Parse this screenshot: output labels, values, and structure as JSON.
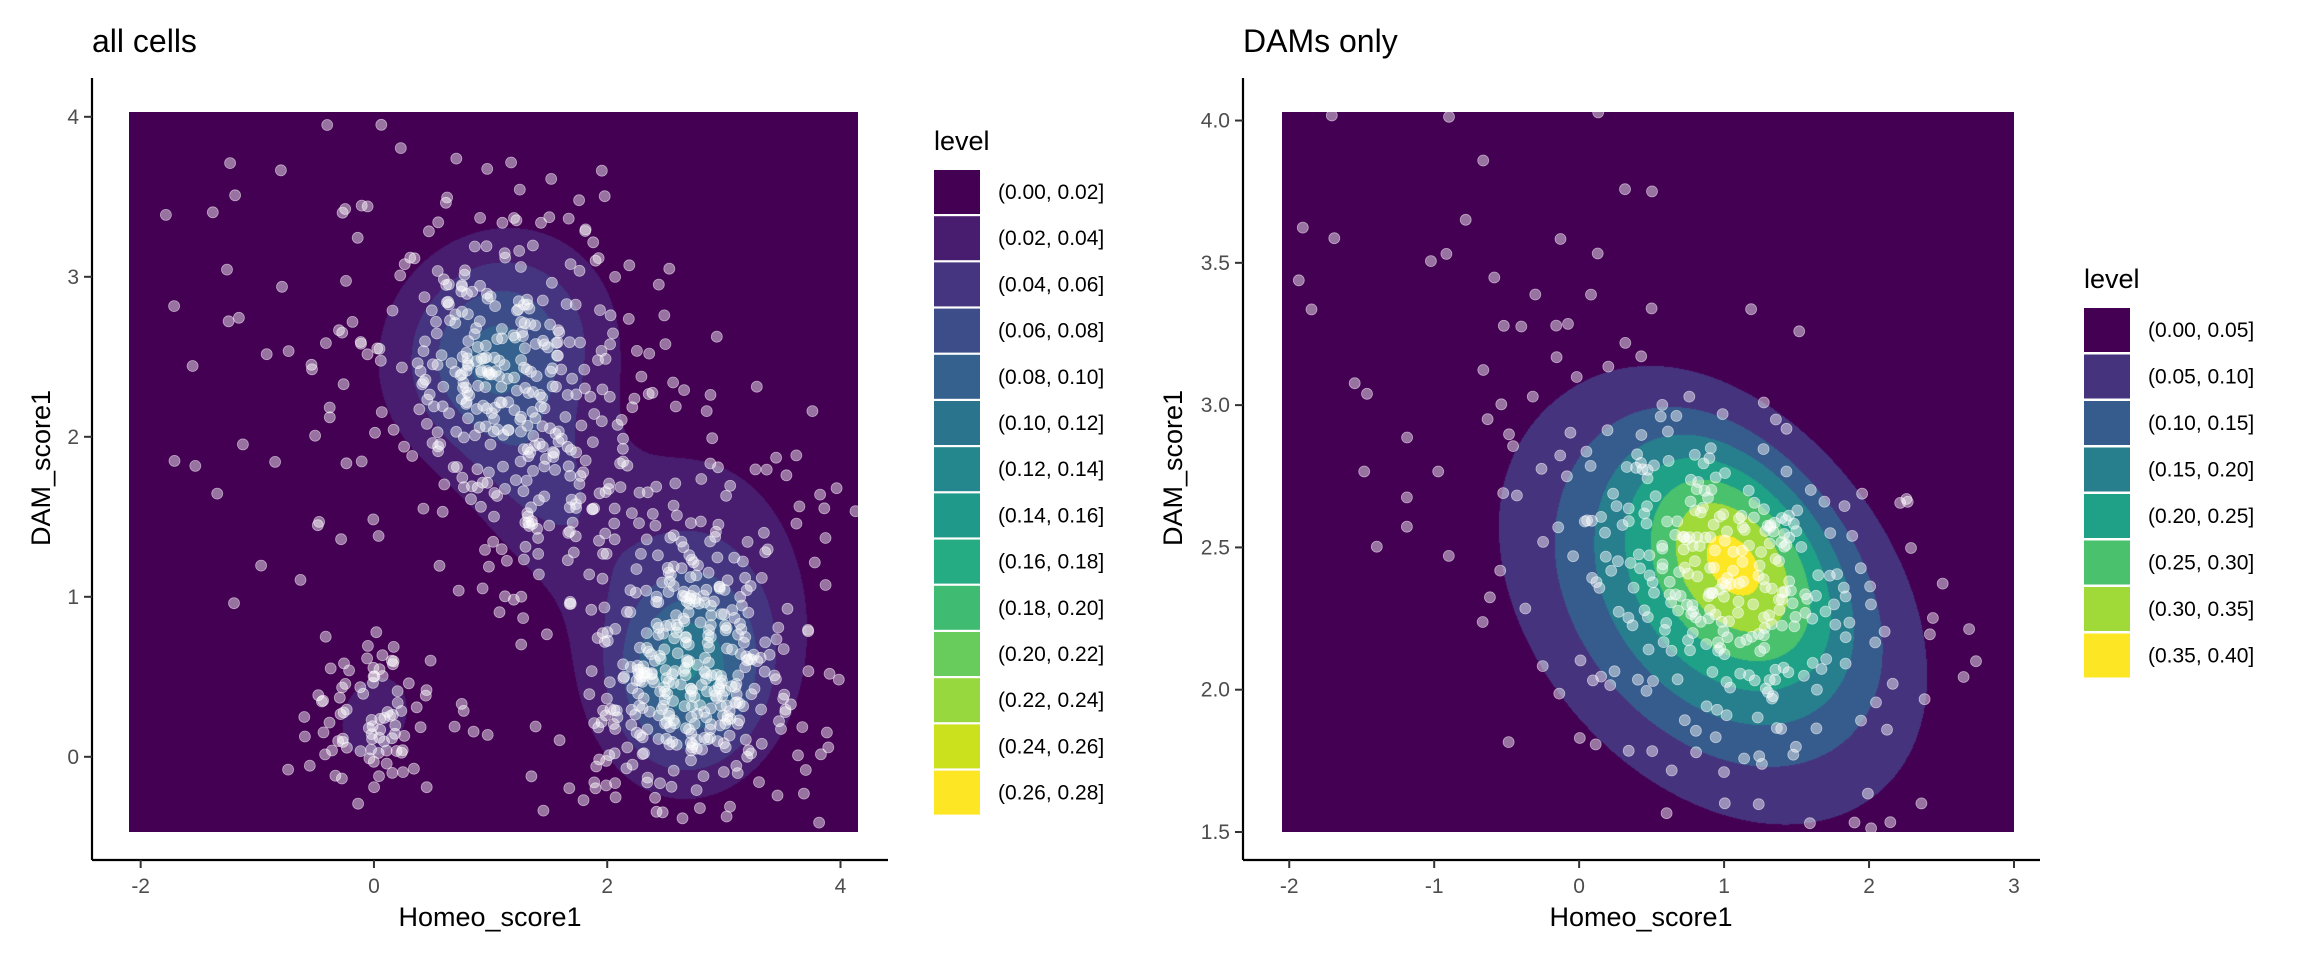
{
  "chart_data": [
    {
      "type": "density_contour",
      "title": "all cells",
      "xlabel": "Homeo_score1",
      "ylabel": "DAM_score1",
      "xlim": [
        -2.1,
        4.15
      ],
      "ylim": [
        -0.47,
        4.03
      ],
      "x_ticks": [
        -2,
        0,
        2,
        4
      ],
      "y_ticks": [
        0,
        1,
        2,
        3,
        4
      ],
      "legend_title": "level",
      "legend_position": "right",
      "legend": [
        {
          "label": "(0.00, 0.02]",
          "color": "#440154"
        },
        {
          "label": "(0.02, 0.04]",
          "color": "#481C6E"
        },
        {
          "label": "(0.04, 0.06]",
          "color": "#453581"
        },
        {
          "label": "(0.06, 0.08]",
          "color": "#3D4D8A"
        },
        {
          "label": "(0.08, 0.10]",
          "color": "#34618D"
        },
        {
          "label": "(0.10, 0.12]",
          "color": "#2B748E"
        },
        {
          "label": "(0.12, 0.14]",
          "color": "#24878E"
        },
        {
          "label": "(0.14, 0.16]",
          "color": "#1F998A"
        },
        {
          "label": "(0.16, 0.18]",
          "color": "#25AC82"
        },
        {
          "label": "(0.18, 0.20]",
          "color": "#40BC72"
        },
        {
          "label": "(0.20, 0.22]",
          "color": "#67CC5C"
        },
        {
          "label": "(0.22, 0.24]",
          "color": "#97D83F"
        },
        {
          "label": "(0.24, 0.26]",
          "color": "#CBE11E"
        },
        {
          "label": "(0.26, 0.28]",
          "color": "#FDE725"
        }
      ],
      "density_components": [
        {
          "mx": 2.7,
          "my": 0.5,
          "sx": 0.42,
          "sy": 0.38,
          "rho": 0.05,
          "w": 0.32
        },
        {
          "mx": 1.05,
          "my": 2.55,
          "sx": 0.6,
          "sy": 0.45,
          "rho": 0.1,
          "w": 0.3
        },
        {
          "mx": 1.4,
          "my": 1.7,
          "sx": 0.45,
          "sy": 0.4,
          "rho": -0.3,
          "w": 0.12
        },
        {
          "mx": 0.0,
          "my": 0.25,
          "sx": 0.3,
          "sy": 0.27,
          "rho": 0.2,
          "w": 0.11
        },
        {
          "mx": 2.7,
          "my": 1.0,
          "sx": 0.75,
          "sy": 0.7,
          "rho": 0.0,
          "w": 0.15
        }
      ],
      "n_points": 900
    },
    {
      "type": "density_contour",
      "title": "DAMs only",
      "xlabel": "Homeo_score1",
      "ylabel": "DAM_score1",
      "xlim": [
        -2.05,
        3.0
      ],
      "ylim": [
        1.5,
        4.03
      ],
      "x_ticks": [
        -2,
        -1,
        0,
        1,
        2,
        3
      ],
      "y_ticks": [
        1.5,
        2.0,
        2.5,
        3.0,
        3.5,
        4.0
      ],
      "y_tick_labels": [
        "1.5",
        "2.0",
        "2.5",
        "3.0",
        "3.5",
        "4.0"
      ],
      "legend_title": "level",
      "legend_position": "right",
      "legend": [
        {
          "label": "(0.00, 0.05]",
          "color": "#440154"
        },
        {
          "label": "(0.05, 0.10]",
          "color": "#46337E"
        },
        {
          "label": "(0.10, 0.15]",
          "color": "#365C8D"
        },
        {
          "label": "(0.15, 0.20]",
          "color": "#277F8E"
        },
        {
          "label": "(0.20, 0.25]",
          "color": "#1FA187"
        },
        {
          "label": "(0.25, 0.30]",
          "color": "#4AC16D"
        },
        {
          "label": "(0.30, 0.35]",
          "color": "#A0DA39"
        },
        {
          "label": "(0.35, 0.40]",
          "color": "#FDE725"
        }
      ],
      "density_components": [
        {
          "mx": 1.1,
          "my": 2.5,
          "sx": 0.48,
          "sy": 0.28,
          "rho": -0.45,
          "w": 0.45
        },
        {
          "mx": 0.9,
          "my": 2.3,
          "sx": 0.85,
          "sy": 0.45,
          "rho": -0.35,
          "w": 0.55
        }
      ],
      "n_points": 360
    }
  ],
  "colors": {
    "background": "#ffffff",
    "axis": "#000000",
    "tick_label": "#4d4d4d",
    "point_fill": "#ffffff",
    "point_stroke": "#ffffff"
  }
}
